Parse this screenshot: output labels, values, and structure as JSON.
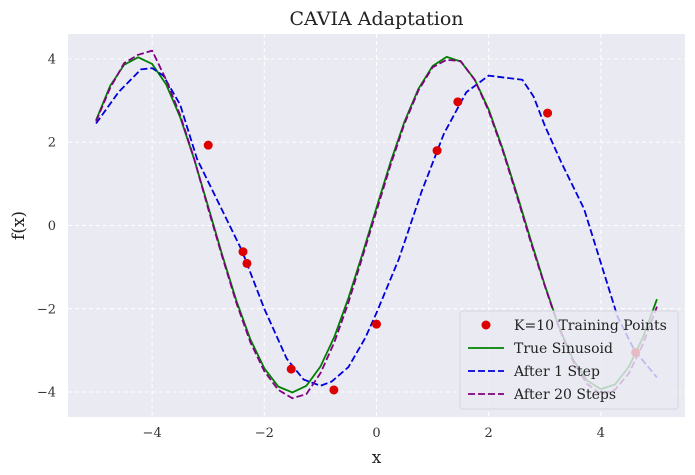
{
  "chart_data": {
    "type": "line",
    "title": "CAVIA Adaptation",
    "xlabel": "x",
    "ylabel": "f(x)",
    "xlim": [
      -5.5,
      5.5
    ],
    "ylim": [
      -4.6,
      4.6
    ],
    "xticks": [
      -4,
      -2,
      0,
      2,
      4
    ],
    "yticks": [
      -4,
      -2,
      0,
      2,
      4
    ],
    "xtick_labels": [
      "−4",
      "−2",
      "0",
      "2",
      "4"
    ],
    "ytick_labels": [
      "−4",
      "−2",
      "0",
      "2",
      "4"
    ],
    "grid": true,
    "legend_position": "lower-right",
    "series": [
      {
        "name": "True Sinusoid",
        "kind": "line",
        "color": "#008000",
        "style": "solid",
        "x": [
          -5.0,
          -4.75,
          -4.5,
          -4.25,
          -4.0,
          -3.75,
          -3.5,
          -3.25,
          -3.0,
          -2.75,
          -2.5,
          -2.25,
          -2.0,
          -1.75,
          -1.5,
          -1.25,
          -1.0,
          -0.75,
          -0.5,
          -0.25,
          0.0,
          0.25,
          0.5,
          0.75,
          1.0,
          1.25,
          1.5,
          1.75,
          2.0,
          2.25,
          2.5,
          2.75,
          3.0,
          3.25,
          3.5,
          3.75,
          4.0,
          4.25,
          4.5,
          4.75,
          5.0
        ],
        "y": [
          2.53,
          3.35,
          3.86,
          4.04,
          3.88,
          3.39,
          2.6,
          1.59,
          0.45,
          -0.71,
          -1.8,
          -2.73,
          -3.43,
          -3.87,
          -4.01,
          -3.85,
          -3.39,
          -2.67,
          -1.74,
          -0.68,
          0.43,
          1.52,
          2.5,
          3.29,
          3.83,
          4.05,
          3.94,
          3.51,
          2.79,
          1.84,
          0.77,
          -0.35,
          -1.43,
          -2.42,
          -3.21,
          -3.72,
          -3.93,
          -3.82,
          -3.39,
          -2.69,
          -1.77
        ]
      },
      {
        "name": "After 1 Step",
        "kind": "line",
        "color": "#0000dd",
        "style": "dashed",
        "x": [
          -5.0,
          -4.6,
          -4.2,
          -4.0,
          -3.8,
          -3.5,
          -3.2,
          -2.8,
          -2.4,
          -2.0,
          -1.6,
          -1.3,
          -1.0,
          -0.8,
          -0.5,
          -0.2,
          0.0,
          0.4,
          0.8,
          1.2,
          1.6,
          2.0,
          2.3,
          2.6,
          2.8,
          3.0,
          3.3,
          3.7,
          4.0,
          4.3,
          4.6,
          5.0
        ],
        "y": [
          2.45,
          3.2,
          3.75,
          3.78,
          3.6,
          2.9,
          1.6,
          0.5,
          -0.6,
          -2.0,
          -3.2,
          -3.7,
          -3.85,
          -3.75,
          -3.4,
          -2.7,
          -2.1,
          -0.8,
          0.8,
          2.2,
          3.2,
          3.6,
          3.55,
          3.5,
          3.1,
          2.4,
          1.5,
          0.4,
          -0.9,
          -2.2,
          -3.0,
          -3.65
        ]
      },
      {
        "name": "After 20 Steps",
        "kind": "line",
        "color": "#800080",
        "style": "dashed",
        "x": [
          -5.0,
          -4.75,
          -4.5,
          -4.25,
          -4.0,
          -3.75,
          -3.5,
          -3.25,
          -3.0,
          -2.75,
          -2.5,
          -2.25,
          -2.0,
          -1.75,
          -1.5,
          -1.25,
          -1.0,
          -0.75,
          -0.5,
          -0.25,
          0.0,
          0.25,
          0.5,
          0.75,
          1.0,
          1.25,
          1.5,
          1.75,
          2.0,
          2.25,
          2.5,
          2.75,
          3.0,
          3.25,
          3.5,
          3.75,
          4.0,
          4.25,
          4.5,
          4.75,
          5.0
        ],
        "y": [
          2.5,
          3.3,
          3.9,
          4.1,
          4.2,
          3.5,
          2.65,
          1.6,
          0.4,
          -0.75,
          -1.85,
          -2.8,
          -3.5,
          -3.95,
          -4.15,
          -4.05,
          -3.55,
          -2.8,
          -1.85,
          -0.75,
          0.35,
          1.45,
          2.45,
          3.25,
          3.8,
          3.98,
          3.95,
          3.5,
          2.75,
          1.8,
          0.72,
          -0.4,
          -1.45,
          -2.45,
          -3.25,
          -3.8,
          -4.05,
          -3.95,
          -3.55,
          -2.85,
          -1.95
        ]
      },
      {
        "name": "K=10 Training Points",
        "kind": "scatter",
        "color": "#dd0000",
        "x": [
          -3.0,
          -2.38,
          -2.31,
          -1.52,
          -0.76,
          0.0,
          1.08,
          1.45,
          3.05,
          4.62
        ],
        "y": [
          1.93,
          -0.63,
          -0.91,
          -3.45,
          -3.95,
          -2.37,
          1.8,
          2.97,
          2.7,
          -3.05
        ]
      }
    ]
  }
}
